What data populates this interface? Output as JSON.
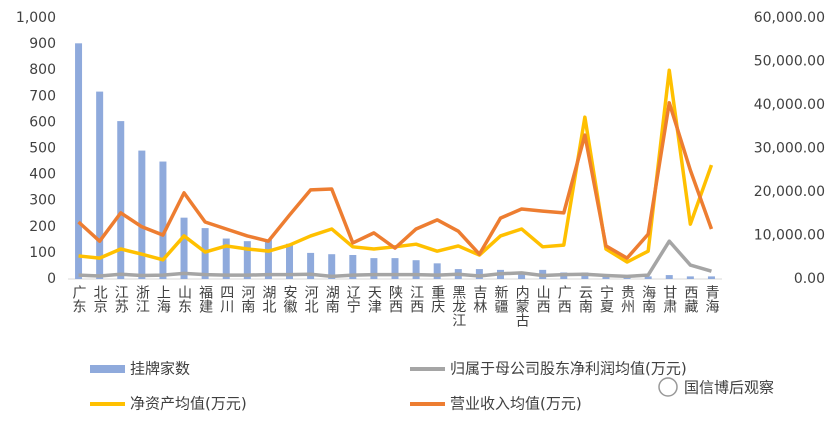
{
  "chart_data": {
    "type": "bar-line",
    "categories": [
      "广东",
      "北京",
      "江苏",
      "浙江",
      "上海",
      "山东",
      "福建",
      "四川",
      "河南",
      "湖北",
      "安徽",
      "河北",
      "湖南",
      "辽宁",
      "天津",
      "陕西",
      "江西",
      "重庆",
      "黑龙江",
      "吉林",
      "新疆",
      "内蒙古",
      "山西",
      "广西",
      "云南",
      "宁夏",
      "贵州",
      "海南",
      "甘肃",
      "西藏",
      "青海"
    ],
    "series": [
      {
        "name": "挂牌家数",
        "type": "bar",
        "color": "#8faadc",
        "values": [
          903,
          718,
          605,
          492,
          450,
          235,
          195,
          155,
          145,
          150,
          135,
          100,
          95,
          92,
          80,
          80,
          72,
          60,
          38,
          38,
          35,
          28,
          35,
          25,
          25,
          12,
          8,
          10,
          15,
          10,
          10
        ]
      },
      {
        "name": "归属于母公司股东净利润均值(万元)",
        "type": "line",
        "axis": "y2",
        "color": "#a5a5a5",
        "values": [
          900,
          700,
          1100,
          800,
          900,
          1300,
          1000,
          900,
          900,
          1000,
          1000,
          1100,
          600,
          900,
          1000,
          1000,
          1000,
          900,
          1100,
          700,
          1200,
          1400,
          800,
          1000,
          1100,
          800,
          600,
          900,
          8700,
          3200,
          1800
        ]
      },
      {
        "name": "净资产均值(万元)",
        "type": "line",
        "axis": "y2",
        "color": "#ffc000",
        "values": [
          5300,
          4800,
          6900,
          5700,
          4400,
          9900,
          6200,
          7600,
          6900,
          6400,
          7800,
          9900,
          11500,
          7400,
          6900,
          7400,
          8000,
          6400,
          7600,
          5500,
          9900,
          11500,
          7400,
          7800,
          37200,
          6900,
          3900,
          6400,
          48000,
          12600,
          26200
        ]
      },
      {
        "name": "营业收入均值(万元)",
        "type": "line",
        "axis": "y2",
        "color": "#ed7d31",
        "values": [
          13100,
          8700,
          15200,
          12000,
          10100,
          19800,
          13100,
          11500,
          9900,
          8700,
          14700,
          20500,
          20700,
          8300,
          10600,
          7100,
          11500,
          13600,
          11000,
          5700,
          14000,
          16100,
          15600,
          15200,
          33100,
          7600,
          4800,
          10300,
          40500,
          25000,
          11500
        ]
      }
    ],
    "ylim": [
      0,
      1000
    ],
    "yticks": [
      0,
      100,
      200,
      300,
      400,
      500,
      600,
      700,
      800,
      900,
      {
        "value": 1000,
        "label": "1,000"
      }
    ],
    "y2lim": [
      0,
      60000
    ],
    "y2ticks": [
      {
        "value": 0,
        "label": "0.00"
      },
      {
        "value": 10000,
        "label": "10,000.00"
      },
      {
        "value": 20000,
        "label": "20,000.00"
      },
      {
        "value": 30000,
        "label": "30,000.00"
      },
      {
        "value": 40000,
        "label": "40,000.00"
      },
      {
        "value": 50000,
        "label": "50,000.00"
      },
      {
        "value": 60000,
        "label": "60,000.00"
      }
    ],
    "grid": false,
    "watermark": "国信博后观察"
  }
}
